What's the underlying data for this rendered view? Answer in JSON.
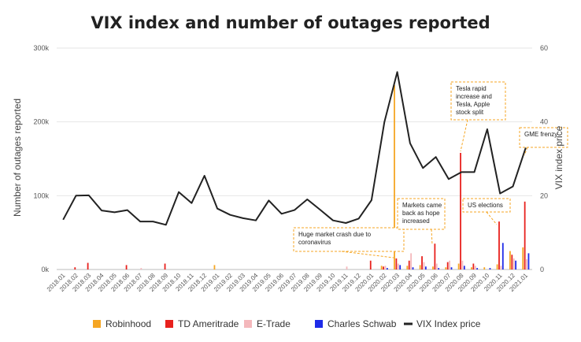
{
  "chart_data": {
    "type": "bar+line",
    "title": "VIX index and number of outages reported",
    "ylabel_left": "Number of outages reported",
    "ylabel_right": "VIX index price",
    "ylim_left": [
      0,
      300000
    ],
    "ylim_right": [
      0,
      60
    ],
    "left_ticks": [
      {
        "value": 0,
        "label": "0k"
      },
      {
        "value": 100000,
        "label": "100k"
      },
      {
        "value": 200000,
        "label": "200k"
      },
      {
        "value": 300000,
        "label": "300k"
      }
    ],
    "right_ticks": [
      {
        "value": 0,
        "label": "0"
      },
      {
        "value": 20,
        "label": "20"
      },
      {
        "value": 40,
        "label": "40"
      },
      {
        "value": 60,
        "label": "60"
      }
    ],
    "categories": [
      "2018.01",
      "2018.02",
      "2018.03",
      "2018.04",
      "2018.05",
      "2018.06",
      "2018.07",
      "2018.08",
      "2018.09",
      "2018.10",
      "2018.11",
      "2018.12",
      "2019.01",
      "2019.02",
      "2019.03",
      "2019.04",
      "2019.05",
      "2019.06",
      "2019.07",
      "2019.08",
      "2019.09",
      "2019.10",
      "2019.11",
      "2019.12",
      "2020.01",
      "2020.02",
      "2020.03",
      "2020.04",
      "2020.05",
      "2020.06",
      "2020.07",
      "2020.08",
      "2020.09",
      "2020.10",
      "2020.11",
      "2020.12",
      "2021.01"
    ],
    "series": [
      {
        "name": "Robinhood",
        "color": "#f5a623",
        "values": [
          0,
          0,
          0,
          0,
          0,
          0,
          0,
          0,
          0,
          0,
          0,
          0,
          6000,
          0,
          0,
          0,
          0,
          0,
          0,
          0,
          0,
          0,
          0,
          0,
          0,
          5000,
          250000,
          5000,
          6000,
          4000,
          3000,
          8000,
          3000,
          3000,
          7000,
          25000,
          30000
        ]
      },
      {
        "name": "TD Ameritrade",
        "color": "#e8211d",
        "values": [
          0,
          3000,
          9000,
          0,
          0,
          6000,
          0,
          0,
          8000,
          0,
          0,
          0,
          0,
          0,
          0,
          0,
          0,
          0,
          0,
          0,
          0,
          0,
          0,
          0,
          12000,
          4000,
          15000,
          12000,
          18000,
          35000,
          10000,
          158000,
          8000,
          0,
          65000,
          20000,
          92000
        ]
      },
      {
        "name": "E-Trade",
        "color": "#f4b8bc",
        "values": [
          0,
          0,
          0,
          0,
          0,
          0,
          2000,
          0,
          0,
          0,
          0,
          0,
          0,
          0,
          0,
          0,
          0,
          0,
          0,
          0,
          0,
          0,
          4000,
          0,
          0,
          5000,
          8000,
          22000,
          10000,
          8000,
          12000,
          12000,
          5000,
          0,
          5000,
          15000,
          14000
        ]
      },
      {
        "name": "Charles Schwab",
        "color": "#1e2be8",
        "values": [
          0,
          0,
          0,
          0,
          0,
          0,
          0,
          0,
          0,
          0,
          0,
          0,
          0,
          0,
          0,
          0,
          0,
          0,
          0,
          0,
          0,
          0,
          0,
          0,
          0,
          2000,
          6000,
          3000,
          4000,
          2000,
          3000,
          5000,
          2000,
          2000,
          36000,
          12000,
          22000
        ]
      }
    ],
    "line_series": {
      "name": "VIX Index price",
      "color": "#222222",
      "values": [
        13.5,
        20,
        20.1,
        16,
        15.5,
        16.1,
        13,
        13,
        12.1,
        21,
        18,
        25.4,
        16.5,
        14.8,
        13.9,
        13.3,
        18.7,
        15.1,
        16.1,
        19,
        16.2,
        13.3,
        12.6,
        13.8,
        18.8,
        40,
        53.5,
        34.2,
        27.5,
        30.5,
        24.5,
        26.4,
        26.4,
        38,
        20.6,
        22.5,
        33
      ]
    },
    "annotations": [
      {
        "lines": [
          "Huge market crash due to",
          "coronavirus"
        ],
        "target": "2020.03"
      },
      {
        "lines": [
          "Markets came",
          "back as hope",
          "increased"
        ],
        "target": "2020.05"
      },
      {
        "lines": [
          "Tesla rapid",
          "increase and",
          "Tesla, Apple",
          "stock split"
        ],
        "target": "2020.08"
      },
      {
        "lines": [
          "US elections"
        ],
        "target": "2020.11"
      },
      {
        "lines": [
          "GME frenzy"
        ],
        "target": "2021.01"
      }
    ],
    "legend_position": "bottom"
  }
}
